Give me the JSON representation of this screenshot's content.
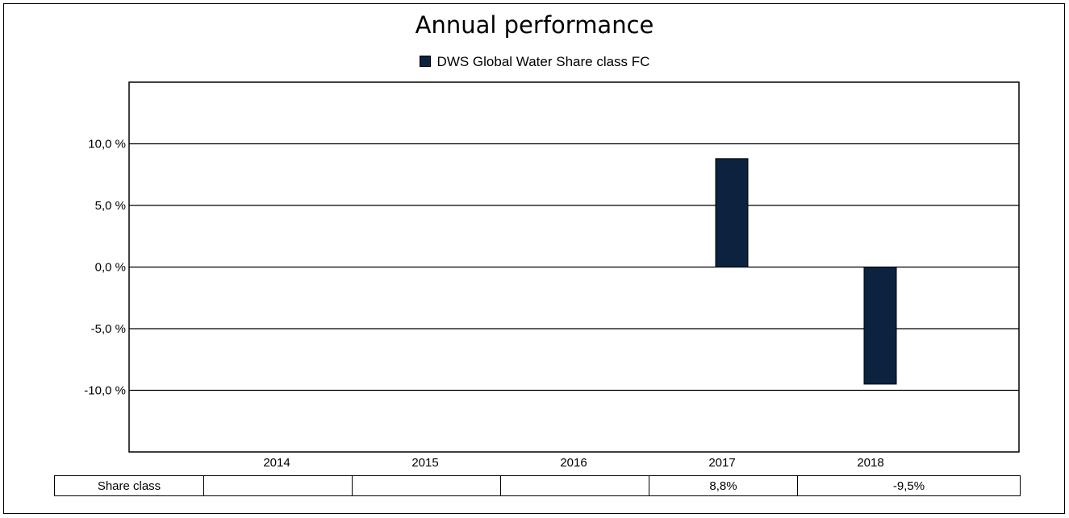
{
  "chart_data": {
    "type": "bar",
    "title": "Annual performance",
    "categories": [
      "2014",
      "2015",
      "2016",
      "2017",
      "2018"
    ],
    "series": [
      {
        "name": "DWS Global Water Share class FC",
        "values": [
          null,
          null,
          null,
          8.8,
          -9.5
        ]
      }
    ],
    "ylim": [
      -15,
      15
    ],
    "yticks": [
      10,
      5,
      0,
      -5,
      -10
    ],
    "ytick_labels": [
      "10,0 %",
      "5,0 %",
      "0,0 %",
      "-5,0 %",
      "-10,0 %"
    ],
    "grid": true,
    "legend_position": "top",
    "bar_color": "#0c2340"
  },
  "table": {
    "row_label": "Share class",
    "cells": [
      "",
      "",
      "",
      "8,8%",
      "-9,5%"
    ]
  }
}
